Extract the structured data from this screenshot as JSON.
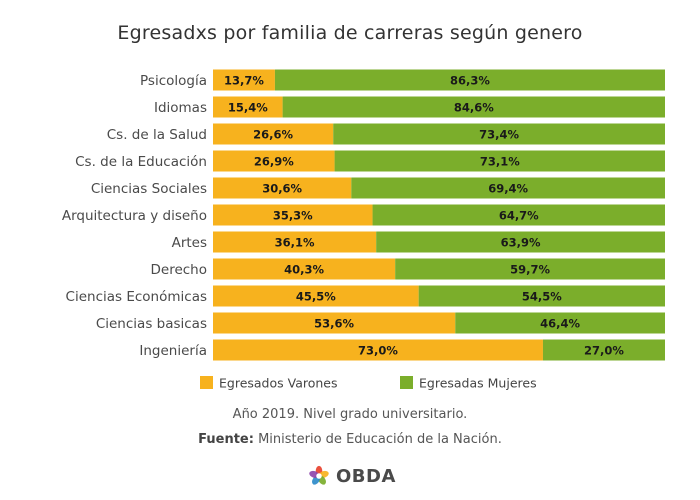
{
  "chart_data": {
    "type": "bar",
    "orientation": "horizontal",
    "stacked": true,
    "normalized": true,
    "title": "Egresadxs por familia de carreras según genero",
    "xlabel": "",
    "ylabel": "",
    "xlim": [
      0,
      100
    ],
    "categories": [
      "Psicología",
      "Idiomas",
      "Cs. de la Salud",
      "Cs. de la Educación",
      "Ciencias Sociales",
      "Arquitectura y diseño",
      "Artes",
      "Derecho",
      "Ciencias Económicas",
      "Ciencias basicas",
      "Ingeniería"
    ],
    "series": [
      {
        "name": "Egresados Varones",
        "color": "#F7B21E",
        "values": [
          13.7,
          15.4,
          26.6,
          26.9,
          30.6,
          35.3,
          36.1,
          40.3,
          45.5,
          53.6,
          73.0
        ],
        "labels": [
          "13,7%",
          "15,4%",
          "26,6%",
          "26,9%",
          "30,6%",
          "35,3%",
          "36,1%",
          "40,3%",
          "45,5%",
          "53,6%",
          "73,0%"
        ]
      },
      {
        "name": "Egresadas Mujeres",
        "color": "#7BAE2B",
        "values": [
          86.3,
          84.6,
          73.4,
          73.1,
          69.4,
          64.7,
          63.9,
          59.7,
          54.5,
          46.4,
          27.0
        ],
        "labels": [
          "86,3%",
          "84,6%",
          "73,4%",
          "73,1%",
          "69,4%",
          "64,7%",
          "63,9%",
          "59,7%",
          "54,5%",
          "46,4%",
          "27,0%"
        ]
      }
    ],
    "legend_position": "bottom-left",
    "grid": false
  },
  "notes": {
    "year_text": "Año 2019. Nivel grado universitario.",
    "source_label": "Fuente:",
    "source_text": "Ministerio de Educación de la Nación."
  },
  "brand": {
    "name": "OBDA",
    "logo_icon": "obda-logo-icon",
    "logo_colors": [
      "#E8412E",
      "#F7B21E",
      "#7BAE2B",
      "#2E8BC9",
      "#8E44AD"
    ]
  }
}
